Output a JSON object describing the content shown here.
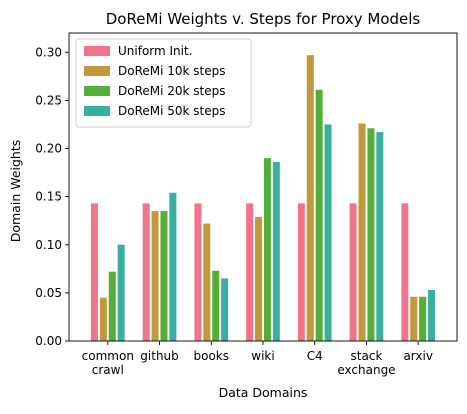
{
  "chart_data": {
    "type": "bar",
    "title": "DoReMi Weights v. Steps for Proxy Models",
    "xlabel": "Data Domains",
    "ylabel": "Domain Weights",
    "categories": [
      [
        "common",
        "crawl"
      ],
      [
        "github"
      ],
      [
        "books"
      ],
      [
        "wiki"
      ],
      [
        "C4"
      ],
      [
        "stack",
        "exchange"
      ],
      [
        "arxiv"
      ]
    ],
    "ylim": [
      0,
      0.32
    ],
    "yticks": [
      "0.00",
      "0.05",
      "0.10",
      "0.15",
      "0.20",
      "0.25",
      "0.30"
    ],
    "ytick_values": [
      0,
      0.05,
      0.1,
      0.15,
      0.2,
      0.25,
      0.3
    ],
    "legend_position": "top-left",
    "grid": false,
    "series": [
      {
        "name": "Uniform Init.",
        "color": "#f0758a",
        "values": [
          0.143,
          0.143,
          0.143,
          0.143,
          0.143,
          0.143,
          0.143
        ]
      },
      {
        "name": "DoReMi 10k steps",
        "color": "#c0993b",
        "values": [
          0.045,
          0.135,
          0.122,
          0.129,
          0.297,
          0.226,
          0.046
        ]
      },
      {
        "name": "DoReMi 20k steps",
        "color": "#55ae3a",
        "values": [
          0.072,
          0.135,
          0.073,
          0.19,
          0.261,
          0.221,
          0.046
        ]
      },
      {
        "name": "DoReMi 50k steps",
        "color": "#3aaea0",
        "values": [
          0.1,
          0.154,
          0.065,
          0.186,
          0.225,
          0.217,
          0.053
        ]
      }
    ]
  }
}
